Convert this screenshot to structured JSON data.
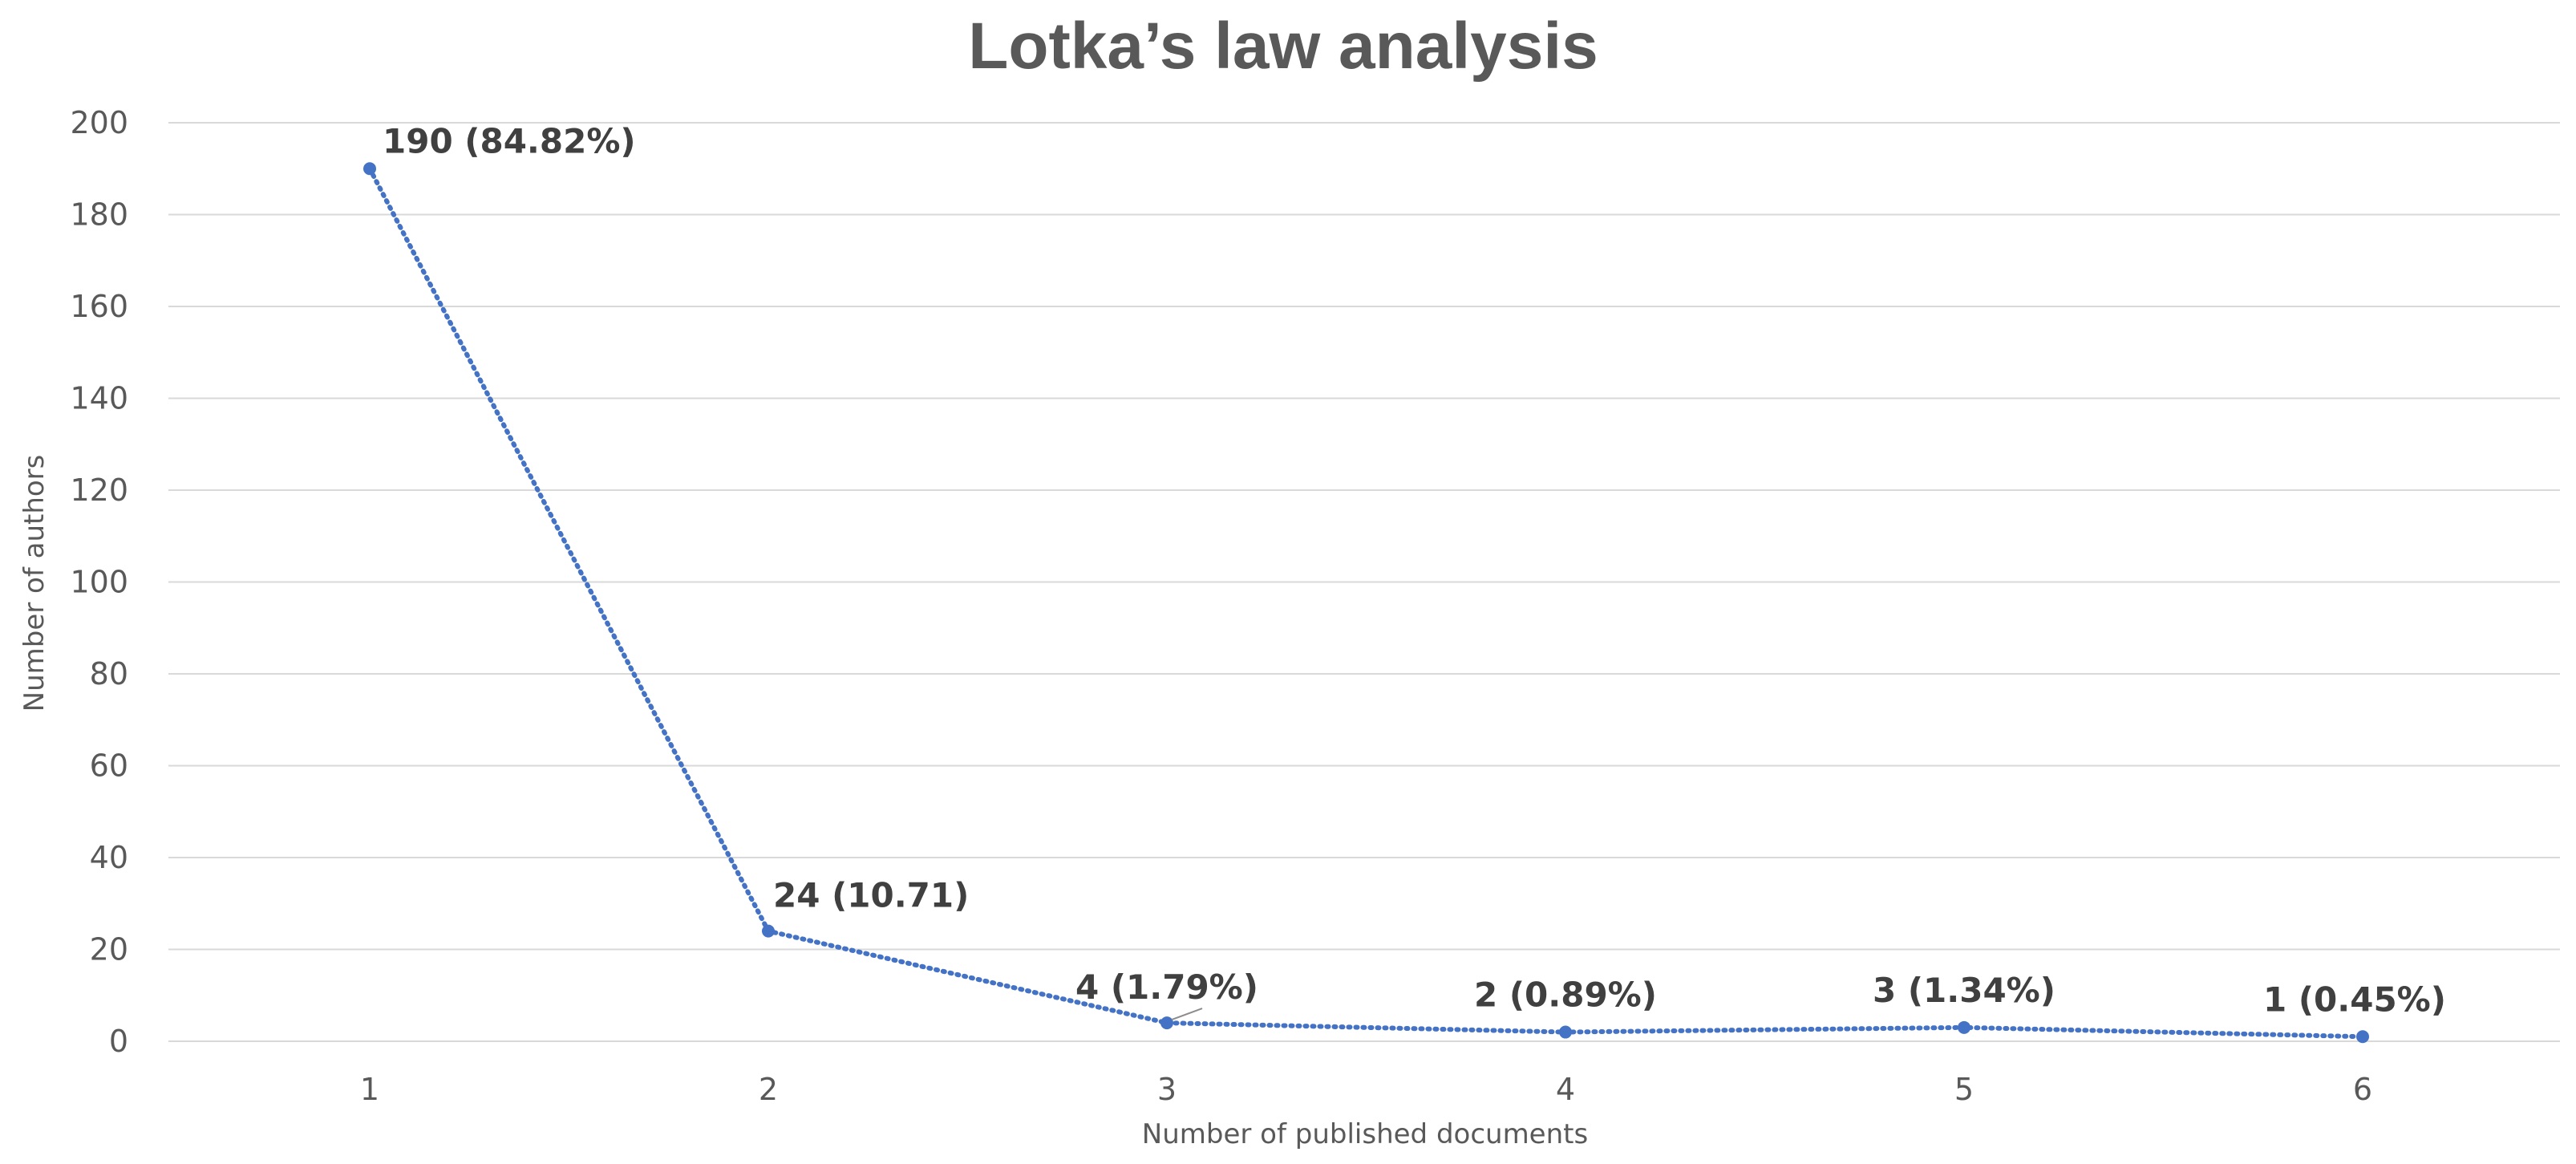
{
  "chart_data": {
    "type": "line",
    "title": "Lotka’s law analysis",
    "xlabel": "Number of published documents",
    "ylabel": "Number of authors",
    "categories": [
      "1",
      "2",
      "3",
      "4",
      "5",
      "6"
    ],
    "series": [
      {
        "values": [
          190,
          24,
          4,
          2,
          3,
          1
        ],
        "data_labels": [
          "190 (84.82%)",
          "24 (10.71)",
          "4 (1.79%)",
          "2 (0.89%)",
          "3 (1.34%)",
          "1 (0.45%)"
        ]
      }
    ],
    "ylim": [
      0,
      200
    ],
    "yticks": [
      0,
      20,
      40,
      60,
      80,
      100,
      120,
      140,
      160,
      180,
      200
    ],
    "grid": true,
    "legend": "none",
    "line_style": "dotted",
    "series_color": "#4472c4"
  }
}
